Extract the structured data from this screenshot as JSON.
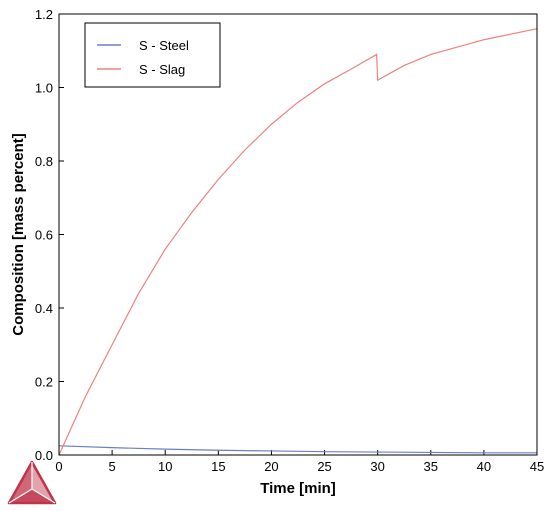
{
  "chart_data": {
    "type": "line",
    "title": "",
    "xlabel": "Time [min]",
    "ylabel": "Composition  [mass percent]",
    "xlim": [
      0,
      45
    ],
    "ylim": [
      0,
      1.2
    ],
    "xticks": [
      0,
      5,
      10,
      15,
      20,
      25,
      30,
      35,
      40,
      45
    ],
    "xtick_labels": [
      "0",
      "5",
      "10",
      "15",
      "20",
      "25",
      "30",
      "35",
      "40",
      "45"
    ],
    "yticks": [
      0,
      0.2,
      0.4,
      0.6,
      0.8,
      1.0,
      1.2
    ],
    "ytick_labels": [
      "0.0",
      "0.2",
      "0.4",
      "0.6",
      "0.8",
      "1.0",
      "1.2"
    ],
    "grid": false,
    "legend_position": "top-left",
    "series": [
      {
        "name": "S - Steel",
        "color": "#6b7fc4",
        "x": [
          0,
          5,
          10,
          15,
          20,
          25,
          30,
          35,
          40,
          45
        ],
        "y": [
          0.025,
          0.02,
          0.016,
          0.013,
          0.011,
          0.009,
          0.008,
          0.007,
          0.006,
          0.006
        ]
      },
      {
        "name": "S - Slag",
        "color": "#f08080",
        "x": [
          0,
          2.5,
          5,
          7.5,
          10,
          12.5,
          15,
          17.5,
          20,
          22.5,
          25,
          27.5,
          29.9,
          30,
          32.5,
          35,
          37.5,
          40,
          42.5,
          45
        ],
        "y": [
          0,
          0.16,
          0.3,
          0.44,
          0.56,
          0.66,
          0.75,
          0.83,
          0.9,
          0.96,
          1.01,
          1.05,
          1.09,
          1.02,
          1.06,
          1.09,
          1.11,
          1.13,
          1.145,
          1.16
        ]
      }
    ]
  },
  "logo": {
    "icon": "thermo-calc-logo-icon",
    "color": "#c0344a"
  }
}
